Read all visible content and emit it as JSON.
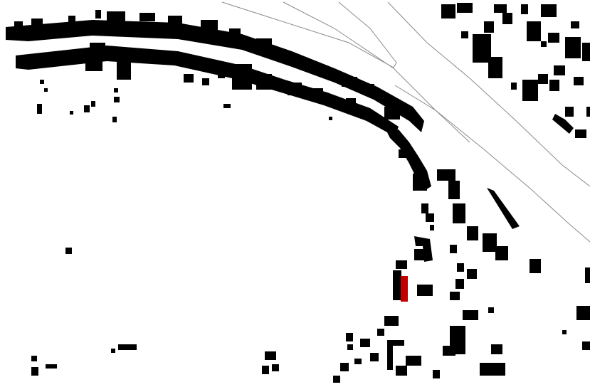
{
  "map": {
    "style": "figure-ground building footprint plan",
    "background_color": "#ffffff",
    "building_color": "#000000",
    "highlight_color": "#c00000",
    "road_line_color": "#8a8a8a",
    "highlighted_building_count": 1,
    "text_labels": []
  }
}
